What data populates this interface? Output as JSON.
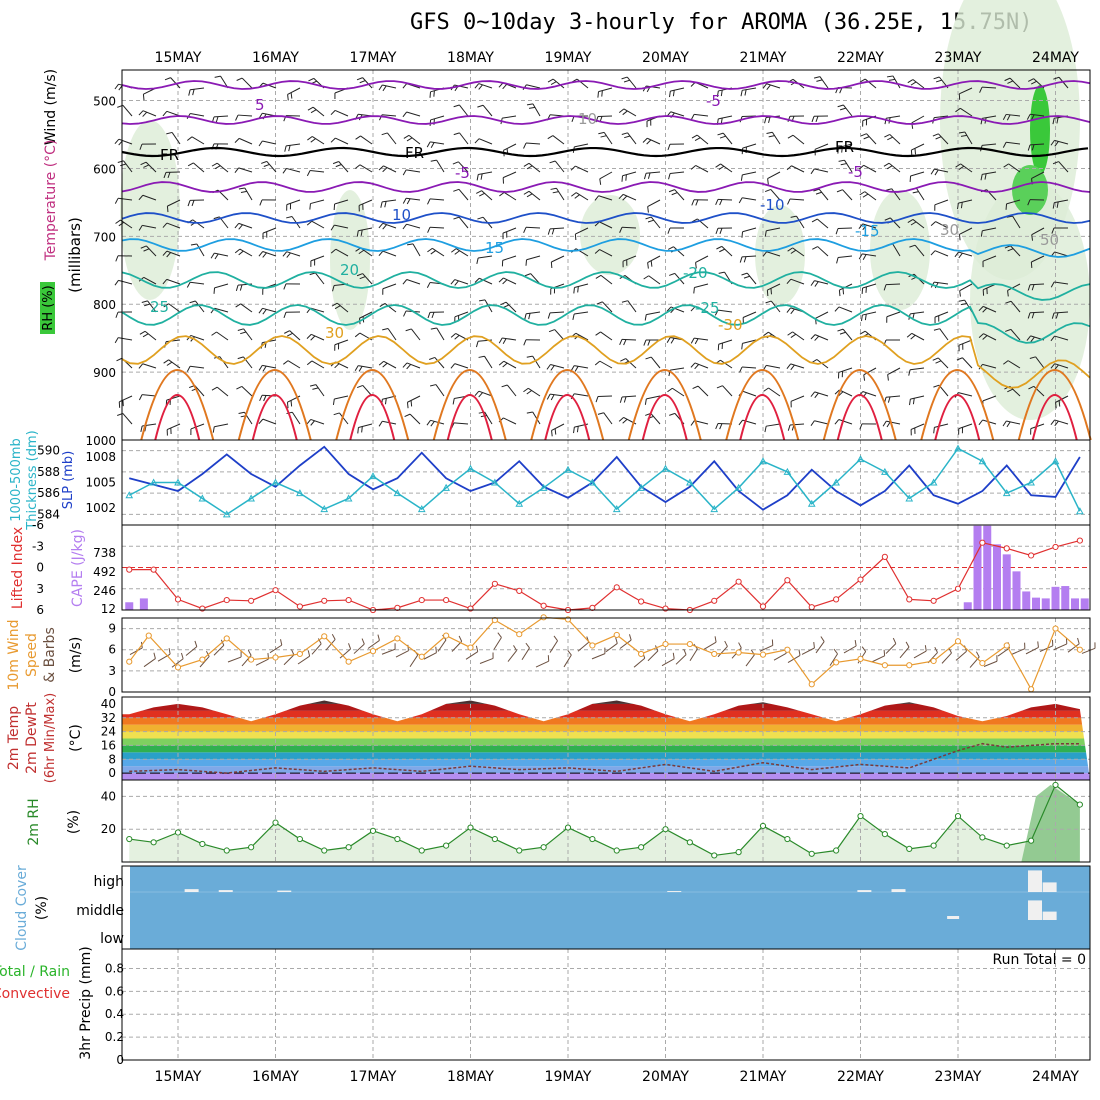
{
  "title": "GFS 0~10day 3-hourly for AROMA (36.25E, 15.75N)",
  "days": [
    "15MAY",
    "16MAY",
    "17MAY",
    "18MAY",
    "19MAY",
    "20MAY",
    "21MAY",
    "22MAY",
    "23MAY",
    "24MAY"
  ],
  "colors": {
    "grid": "#aaaaaa",
    "slp": "#1e3fc8",
    "thickness": "#2ab4c8",
    "lifted": "#e03030",
    "cape": "#b47ef0",
    "wind": "#e89a30",
    "barb": "#6b5040",
    "rh": "#2a8a2a",
    "rh_fill": "#e4f1e0",
    "cloud": "#6aacd8",
    "precip_total": "#2ab42a",
    "precip_conv": "#e03030",
    "temp_purple": "#8a1ab4",
    "temp_blue": "#1e50c8",
    "temp_cyan": "#1e9ee0",
    "temp_teal": "#20b0a0",
    "temp_orange": "#e0a020",
    "temp_red": "#e02040"
  },
  "panels": {
    "upper": {
      "labels": {
        "wind": "Wind (m/s)",
        "temperature": "Temperature (°C)",
        "rh": "RH (%)",
        "millibars": "(millibars)"
      },
      "y_ticks": [
        "500",
        "600",
        "700",
        "800",
        "900",
        "1000"
      ],
      "contour_labels": [
        "5",
        "-5",
        "FR",
        "FR",
        "FR",
        "-5",
        "-5",
        "10",
        "-10",
        "15",
        "-15",
        "20",
        "-20",
        "25",
        "-25",
        "30",
        "-30",
        "10",
        "30",
        "50"
      ]
    },
    "slp": {
      "labels": {
        "left1": "1000-500mb",
        "left2": "Thickness (dm)",
        "right": "SLP (mb)"
      },
      "thick_ticks": [
        "590",
        "588",
        "586",
        "584"
      ],
      "slp_ticks": [
        "1008",
        "1005",
        "1002"
      ]
    },
    "lifted": {
      "labels": {
        "left": "Lifted Index",
        "right": "CAPE (J/kg)"
      },
      "li_ticks": [
        "-6",
        "-3",
        "0",
        "3",
        "6"
      ],
      "cape_ticks": [
        "738",
        "492",
        "246",
        "12"
      ]
    },
    "wind": {
      "labels": {
        "l1": "10m Wind",
        "l2": "Speed",
        "l3": "& Barbs",
        "unit": "(m/s)"
      },
      "ticks": [
        "9",
        "6",
        "3",
        "0"
      ]
    },
    "temp": {
      "labels": {
        "l1": "2m Temp",
        "l2": "2m DewPt",
        "l3": "(6hr Min/Max)",
        "unit": "(°C)"
      },
      "ticks": [
        "40",
        "32",
        "24",
        "16",
        "8",
        "0"
      ]
    },
    "rh": {
      "labels": {
        "l1": "2m RH",
        "unit": "(%)"
      },
      "ticks": [
        "40",
        "20"
      ]
    },
    "cloud": {
      "labels": {
        "l1": "Cloud Cover",
        "unit": "(%)"
      },
      "ticks": [
        "high",
        "middle",
        "low"
      ]
    },
    "precip": {
      "labels": {
        "l1": "3hr Precip (mm)",
        "total": "Total / Rain",
        "conv": "Convective",
        "run_total": "Run Total = 0"
      },
      "ticks": [
        "0.8",
        "0.6",
        "0.4",
        "0.2",
        "0"
      ]
    }
  },
  "chart_data": [
    {
      "type": "line",
      "name": "1000-500mb thickness / SLP",
      "x_unit": "days from 15MAY 00Z",
      "x_range": [
        -0.45,
        9.35
      ],
      "series": [
        {
          "name": "SLP (mb)",
          "x": [
            -0.5,
            0,
            0.25,
            0.5,
            0.75,
            1,
            1.25,
            1.5,
            1.75,
            2,
            2.25,
            2.5,
            2.75,
            3,
            3.25,
            3.5,
            3.75,
            4,
            4.25,
            4.5,
            4.75,
            5,
            5.25,
            5.5,
            5.75,
            6,
            6.25,
            6.5,
            6.75,
            7,
            7.25,
            7.5,
            7.75,
            8,
            8.25,
            8.5,
            8.75,
            9,
            9.25
          ],
          "y": [
            1005.5,
            1004,
            1006,
            1008.3,
            1006,
            1004.5,
            1007,
            1009.2,
            1006,
            1004.2,
            1005.5,
            1008.5,
            1005.5,
            1004,
            1005,
            1007.5,
            1004.5,
            1003.2,
            1005,
            1008,
            1004.5,
            1002.7,
            1004.5,
            1007.5,
            1004,
            1001.8,
            1003.5,
            1006.5,
            1004,
            1002.3,
            1004,
            1007,
            1003.5,
            1002.5,
            1004,
            1007,
            1003.5,
            1003.3,
            1008
          ]
        },
        {
          "name": "1000-500mb thickness (dm)",
          "x": [
            -0.5,
            -0.25,
            0,
            0.25,
            0.5,
            0.75,
            1,
            1.25,
            1.5,
            1.75,
            2,
            2.25,
            2.5,
            2.75,
            3,
            3.25,
            3.5,
            3.75,
            4,
            4.25,
            4.5,
            4.75,
            5,
            5.25,
            5.5,
            5.75,
            6,
            6.25,
            6.5,
            6.75,
            7,
            7.25,
            7.5,
            7.75,
            8,
            8.25,
            8.5,
            8.75,
            9,
            9.25
          ],
          "y": [
            585.8,
            587,
            587,
            585.5,
            584,
            585.5,
            587,
            586,
            584.5,
            585.5,
            587.6,
            586,
            584.5,
            586.5,
            588.3,
            587,
            585,
            586.5,
            588.2,
            587,
            584.5,
            586.5,
            588.3,
            587,
            584.5,
            586.5,
            589,
            588,
            585,
            587,
            589.2,
            588,
            585.5,
            587,
            590.2,
            589,
            586,
            587,
            589,
            584.3
          ]
        }
      ]
    },
    {
      "type": "line",
      "name": "Lifted Index / CAPE",
      "series": [
        {
          "name": "Lifted Index",
          "x": [
            -0.5,
            -0.25,
            0,
            0.25,
            0.5,
            0.75,
            1,
            1.25,
            1.5,
            1.75,
            2,
            2.25,
            2.5,
            2.75,
            3,
            3.25,
            3.5,
            3.75,
            4,
            4.25,
            4.5,
            4.75,
            5,
            5.25,
            5.5,
            5.75,
            6,
            6.25,
            6.5,
            6.75,
            7,
            7.25,
            7.5,
            7.75,
            8,
            8.25,
            8.5,
            8.75,
            9,
            9.25
          ],
          "y": [
            0.3,
            0.3,
            4.5,
            5.8,
            4.6,
            4.7,
            3.2,
            5.5,
            4.7,
            4.6,
            6,
            5.7,
            4.6,
            4.6,
            5.8,
            2.3,
            3.3,
            5.4,
            6,
            5.7,
            2.8,
            4.8,
            5.8,
            6,
            4.7,
            2,
            5.5,
            1.8,
            5.6,
            4.5,
            1.7,
            -1.5,
            4.5,
            4.7,
            3,
            -3.5,
            -2.7,
            -1.7,
            -2.9,
            -3.8
          ]
        },
        {
          "name": "CAPE (J/kg)",
          "type": "bar",
          "x": [
            -0.5,
            -0.35,
            8.1,
            8.2,
            8.3,
            8.4,
            8.5,
            8.6,
            8.7,
            8.8,
            8.9,
            9.0,
            9.1,
            9.2,
            9.3
          ],
          "y": [
            100,
            150,
            100,
            1090,
            1090,
            850,
            720,
            500,
            240,
            160,
            150,
            300,
            310,
            150,
            150
          ]
        }
      ]
    },
    {
      "type": "line",
      "name": "10m Wind Speed (m/s)",
      "x": [
        -0.5,
        -0.3,
        0,
        0.25,
        0.5,
        0.75,
        1,
        1.25,
        1.5,
        1.75,
        2,
        2.25,
        2.5,
        2.75,
        3,
        3.25,
        3.5,
        3.75,
        4,
        4.25,
        4.5,
        4.75,
        5,
        5.25,
        5.5,
        5.75,
        6,
        6.25,
        6.5,
        6.75,
        7,
        7.25,
        7.5,
        7.75,
        8,
        8.25,
        8.5,
        8.75,
        9,
        9.25
      ],
      "y": [
        4.3,
        8,
        3.5,
        4.6,
        7.6,
        4.6,
        4.9,
        5.4,
        7.9,
        4.3,
        5.8,
        7.6,
        5,
        8,
        6.3,
        10.2,
        8.2,
        10.6,
        10.3,
        6.6,
        8.1,
        5.4,
        6.8,
        6.8,
        5.4,
        5.6,
        5.3,
        6,
        1.1,
        4.2,
        4.7,
        3.8,
        3.8,
        4.4,
        7.2,
        4.1,
        6.6,
        0.4,
        9,
        6
      ]
    },
    {
      "type": "area",
      "name": "2m Temp / DewPt (°C)",
      "series": [
        {
          "name": "2m Temp",
          "x": [
            -0.5,
            -0.25,
            0,
            0.25,
            0.5,
            0.75,
            1,
            1.25,
            1.5,
            1.75,
            2,
            2.25,
            2.5,
            2.75,
            3,
            3.25,
            3.5,
            3.75,
            4,
            4.25,
            4.5,
            4.75,
            5,
            5.25,
            5.5,
            5.75,
            6,
            6.25,
            6.5,
            6.75,
            7,
            7.25,
            7.5,
            7.75,
            8,
            8.25,
            8.5,
            8.75,
            9,
            9.25
          ],
          "y": [
            34,
            38,
            40,
            38,
            34,
            30,
            34,
            39,
            42,
            39,
            34,
            30,
            34,
            40,
            42,
            39,
            34,
            30,
            34,
            40,
            42,
            39,
            34,
            30,
            34,
            39,
            41,
            38,
            34,
            30,
            34,
            39,
            41,
            38,
            33,
            30,
            33,
            38,
            40,
            37
          ]
        },
        {
          "name": "2m DewPt",
          "x": [
            -0.5,
            0,
            0.5,
            1,
            1.5,
            2,
            2.5,
            3,
            3.5,
            4,
            4.5,
            5,
            5.5,
            6,
            6.5,
            7,
            7.5,
            8,
            8.25,
            8.5,
            9,
            9.25
          ],
          "y": [
            1,
            2,
            0,
            3,
            1,
            3,
            1,
            4,
            2,
            3,
            1,
            5,
            1,
            6,
            2,
            5,
            3,
            13,
            17,
            15,
            17,
            17
          ]
        }
      ]
    },
    {
      "type": "area",
      "name": "2m RH (%)",
      "x": [
        -0.5,
        -0.25,
        0,
        0.25,
        0.5,
        0.75,
        1,
        1.25,
        1.5,
        1.75,
        2,
        2.25,
        2.5,
        2.75,
        3,
        3.25,
        3.5,
        3.75,
        4,
        4.25,
        4.5,
        4.75,
        5,
        5.25,
        5.5,
        5.75,
        6,
        6.25,
        6.5,
        6.75,
        7,
        7.25,
        7.5,
        7.75,
        8,
        8.25,
        8.5,
        8.75,
        9,
        9.25
      ],
      "y": [
        14,
        12,
        18,
        11,
        7,
        9,
        24,
        14,
        7,
        9,
        19,
        14,
        7,
        10,
        21,
        14,
        7,
        9,
        21,
        14,
        7,
        9,
        20,
        12,
        4,
        6,
        22,
        14,
        5,
        7,
        28,
        17,
        8,
        10,
        28,
        15,
        10,
        13,
        47,
        35
      ]
    },
    {
      "type": "bar",
      "name": "Cloud Cover (%)",
      "series": [
        {
          "name": "high",
          "x": [
            0.15,
            0.5,
            1.1,
            5.1,
            7.05,
            7.4,
            8.8,
            8.95
          ],
          "y": [
            12,
            8,
            6,
            4,
            8,
            12,
            90,
            40
          ]
        },
        {
          "name": "middle",
          "x": [
            8.8,
            8.95
          ],
          "y": [
            70,
            30
          ]
        },
        {
          "name": "low",
          "x": [
            7.95
          ],
          "y": [
            4
          ]
        }
      ]
    },
    {
      "type": "bar",
      "name": "3hr Precip (mm)",
      "ylim": [
        0,
        1
      ],
      "series": [
        {
          "name": "Total / Rain",
          "values": []
        },
        {
          "name": "Convective",
          "values": []
        }
      ]
    }
  ]
}
